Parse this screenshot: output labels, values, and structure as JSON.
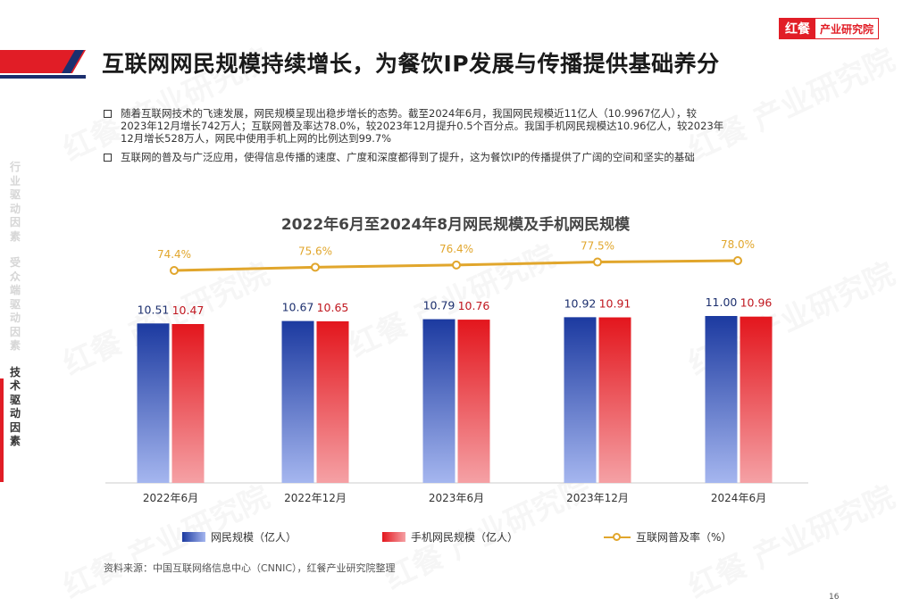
{
  "logo": {
    "part1": "红餐",
    "part2": "产业研究院"
  },
  "title": "互联网网民规模持续增长，为餐饮IP发展与传播提供基础养分",
  "bullets": [
    "随着互联网技术的飞速发展，网民规模呈现出稳步增长的态势。截至2024年6月，我国网民规模近11亿人（10.9967亿人），较\n2023年12月增长742万人；互联网普及率达78.0%，较2023年12月提升0.5个百分点。我国手机网民规模达10.96亿人，较2023年\n12月增长528万人，网民中使用手机上网的比例达到99.7%",
    "互联网的普及与广泛应用，使得信息传播的速度、广度和深度都得到了提升，这为餐饮IP的传播提供了广阔的空间和坚实的基础"
  ],
  "sidenav": [
    {
      "label": "行业驱动因素",
      "active": false
    },
    {
      "label": "受众端驱动因素",
      "active": false
    },
    {
      "label": "技术驱动因素",
      "active": true
    }
  ],
  "chart_data": {
    "type": "bar",
    "title": "2022年6月至2024年8月网民规模及手机网民规模",
    "categories": [
      "2022年6月",
      "2022年12月",
      "2023年6月",
      "2023年12月",
      "2024年6月"
    ],
    "series": [
      {
        "name": "网民规模（亿人）",
        "type": "bar",
        "values": [
          10.51,
          10.67,
          10.79,
          10.92,
          11.0
        ],
        "labels": [
          "10.51",
          "10.67",
          "10.79",
          "10.92",
          "11.00"
        ],
        "color": "#1c3aa0"
      },
      {
        "name": "手机网民规模（亿人）",
        "type": "bar",
        "values": [
          10.47,
          10.65,
          10.76,
          10.91,
          10.96
        ],
        "labels": [
          "10.47",
          "10.65",
          "10.76",
          "10.91",
          "10.96"
        ],
        "color": "#e3161d"
      },
      {
        "name": "互联网普及率（%）",
        "type": "line",
        "values": [
          74.4,
          75.6,
          76.4,
          77.5,
          78.0
        ],
        "labels": [
          "74.4%",
          "75.6%",
          "76.4%",
          "77.5%",
          "78.0%"
        ],
        "color": "#e1a62c"
      }
    ],
    "bar_color_top": "#1c3aa0",
    "bar_color_bottom": "#a5b6ef",
    "bar2_color_top": "#e3161d",
    "bar2_color_bottom": "#f5a1a5",
    "value_label_colors": [
      "#1c2f6e",
      "#c0171f",
      "#e1a62c"
    ],
    "legend_position": "bottom",
    "grid": false
  },
  "source": "资料来源：中国互联网络信息中心（CNNIC），红餐产业研究院整理",
  "page_number": "16"
}
